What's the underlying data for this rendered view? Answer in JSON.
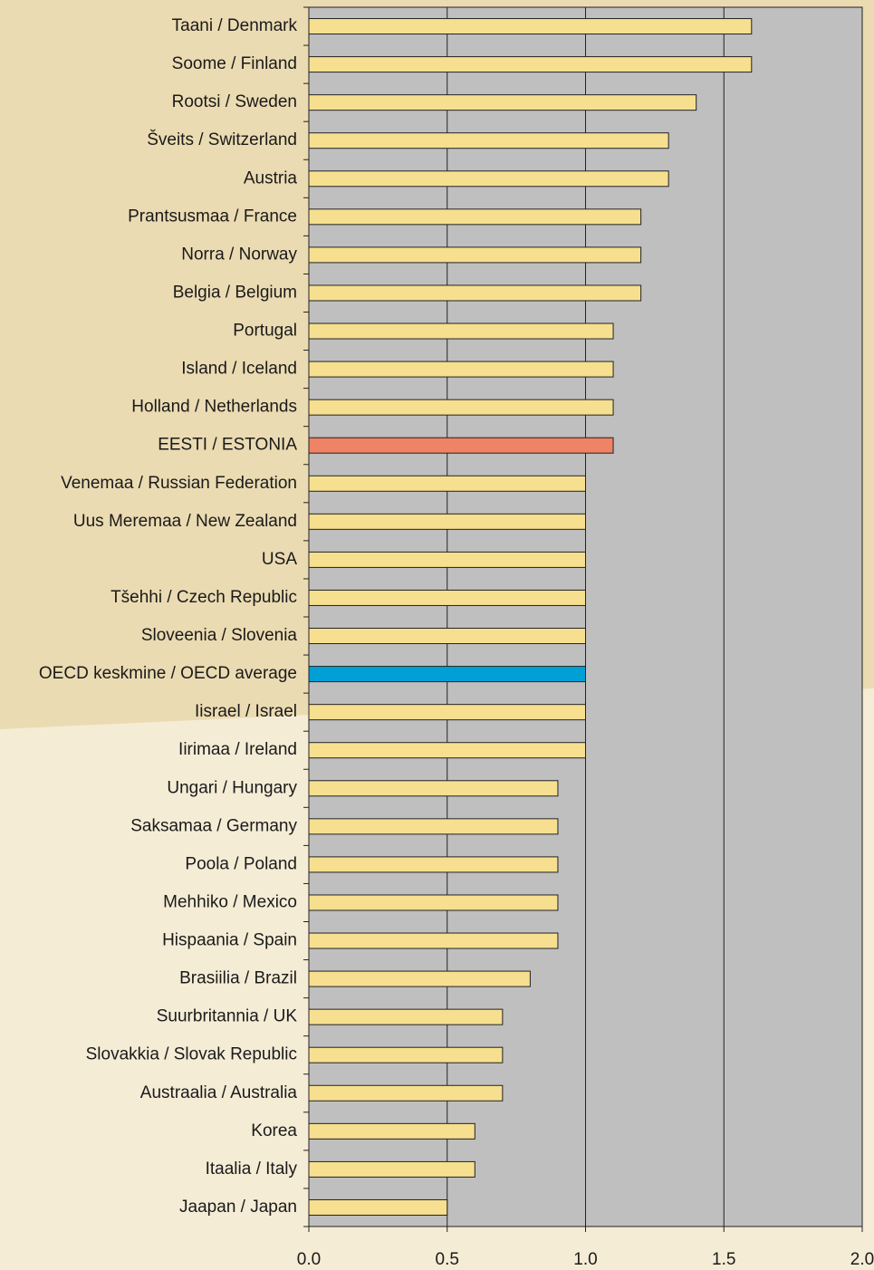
{
  "chart_data": {
    "type": "barh",
    "categories": [
      "Taani / Denmark",
      "Soome / Finland",
      "Rootsi / Sweden",
      "Šveits / Switzerland",
      "Austria",
      "Prantsusmaa / France",
      "Norra / Norway",
      "Belgia / Belgium",
      "Portugal",
      "Island / Iceland",
      "Holland / Netherlands",
      "EESTI / ESTONIA",
      "Venemaa / Russian Federation",
      "Uus Meremaa / New Zealand",
      "USA",
      "Tšehhi / Czech Republic",
      "Sloveenia / Slovenia",
      "OECD keskmine / OECD average",
      "Iisrael / Israel",
      "Iirimaa / Ireland",
      "Ungari / Hungary",
      "Saksamaa / Germany",
      "Poola / Poland",
      "Mehhiko / Mexico",
      "Hispaania / Spain",
      "Brasiilia / Brazil",
      "Suurbritannia / UK",
      "Slovakkia / Slovak Republic",
      "Austraalia / Australia",
      "Korea",
      "Itaalia / Italy",
      "Jaapan / Japan"
    ],
    "values": [
      1.6,
      1.6,
      1.4,
      1.3,
      1.3,
      1.2,
      1.2,
      1.2,
      1.1,
      1.1,
      1.1,
      1.1,
      1.0,
      1.0,
      1.0,
      1.0,
      1.0,
      1.0,
      1.0,
      1.0,
      0.9,
      0.9,
      0.9,
      0.9,
      0.9,
      0.8,
      0.7,
      0.7,
      0.7,
      0.6,
      0.6,
      0.5
    ],
    "colors": [
      "#f7df90",
      "#f7df90",
      "#f7df90",
      "#f7df90",
      "#f7df90",
      "#f7df90",
      "#f7df90",
      "#f7df90",
      "#f7df90",
      "#f7df90",
      "#f7df90",
      "#ee8465",
      "#f7df90",
      "#f7df90",
      "#f7df90",
      "#f7df90",
      "#f7df90",
      "#00a0d6",
      "#f7df90",
      "#f7df90",
      "#f7df90",
      "#f7df90",
      "#f7df90",
      "#f7df90",
      "#f7df90",
      "#f7df90",
      "#f7df90",
      "#f7df90",
      "#f7df90",
      "#f7df90",
      "#f7df90",
      "#f7df90"
    ],
    "xlim": [
      0,
      2
    ],
    "xticks": [
      {
        "value": 0,
        "label": "0.0"
      },
      0.5,
      {
        "value": 1,
        "label": "1.0"
      },
      1.5,
      {
        "value": 2,
        "label": "2.0"
      }
    ],
    "grid": true
  }
}
